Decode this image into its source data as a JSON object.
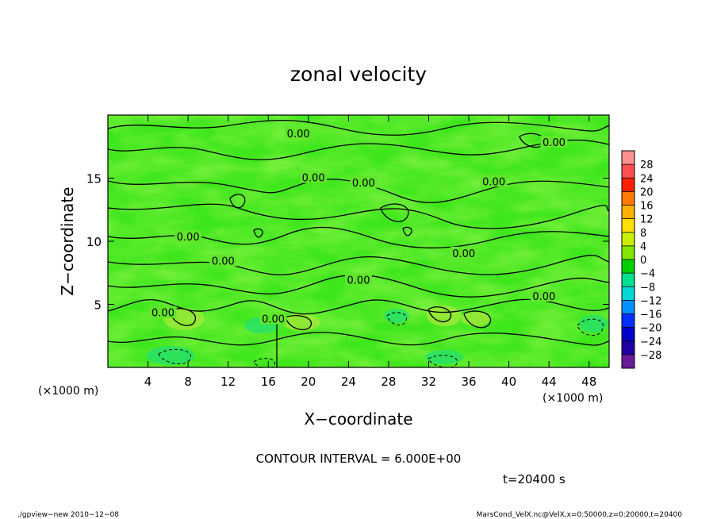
{
  "chart_data": {
    "type": "heatmap",
    "title": "zonal velocity",
    "xlabel": "X−coordinate",
    "ylabel": "Z−coordinate",
    "x_unit_label": "(×1000 m)",
    "y_unit_label": "(×1000 m)",
    "xlim": [
      0,
      50
    ],
    "ylim": [
      0,
      20
    ],
    "x_ticks": [
      4,
      8,
      12,
      16,
      20,
      24,
      28,
      32,
      36,
      40,
      44,
      48
    ],
    "y_ticks": [
      5,
      10,
      15
    ],
    "colorbar": {
      "labels": [
        "28",
        "24",
        "20",
        "16",
        "12",
        "8",
        "4",
        "0",
        "−4",
        "−8",
        "−12",
        "−16",
        "−20",
        "−24",
        "−28"
      ],
      "colors": [
        "#ff9090",
        "#ff5050",
        "#ff2000",
        "#ff7a00",
        "#ffb000",
        "#ffe000",
        "#c8f000",
        "#80e800",
        "#00d000",
        "#00e090",
        "#00d8d8",
        "#0090ff",
        "#0030ff",
        "#0000c8",
        "#2000a0",
        "#6a1b9a"
      ]
    },
    "contour_labels": [
      {
        "x": 19,
        "z": 18.5,
        "text": "0.00"
      },
      {
        "x": 44.5,
        "z": 17.8,
        "text": "0.00"
      },
      {
        "x": 20.5,
        "z": 15.0,
        "text": "0.00"
      },
      {
        "x": 25.5,
        "z": 14.6,
        "text": "0.00"
      },
      {
        "x": 38.5,
        "z": 14.7,
        "text": "0.00"
      },
      {
        "x": 8.0,
        "z": 10.3,
        "text": "0.00"
      },
      {
        "x": 11.5,
        "z": 8.4,
        "text": "0.00"
      },
      {
        "x": 35.5,
        "z": 9.0,
        "text": "0.00"
      },
      {
        "x": 25.0,
        "z": 6.9,
        "text": "0.00"
      },
      {
        "x": 43.5,
        "z": 5.6,
        "text": "0.00"
      },
      {
        "x": 5.5,
        "z": 4.3,
        "text": "0.00"
      },
      {
        "x": 16.5,
        "z": 3.8,
        "text": "0.00"
      }
    ],
    "contour_interval_text": "CONTOUR INTERVAL = 6.000E+00",
    "time_text": "t=20400 s"
  },
  "footer": {
    "left": "./gpview−new  2010−12−08",
    "right": "MarsCond_VelX.nc@VelX,x=0:50000,z=0:20000,t=20400"
  }
}
